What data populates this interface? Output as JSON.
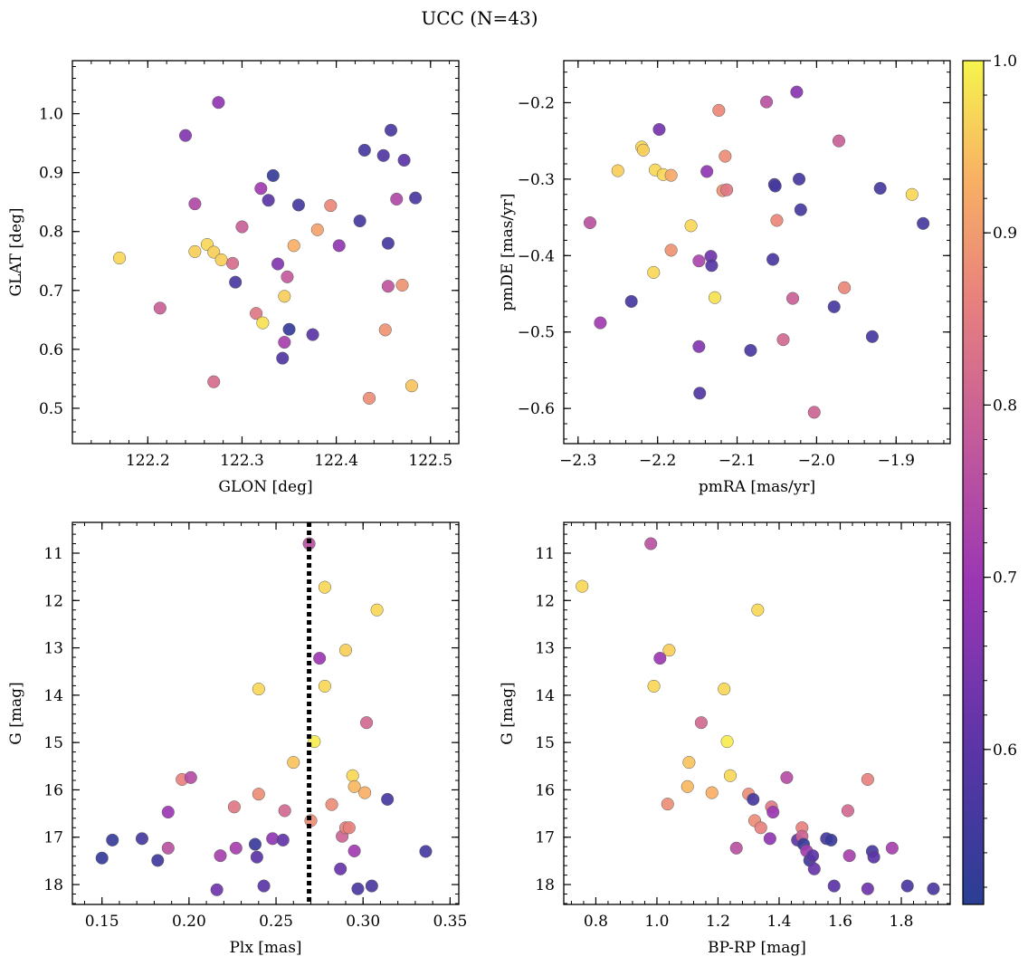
{
  "figure_title": "UCC (N=43)",
  "colorbar": {
    "colormap": "plasma",
    "range": [
      0.51,
      1.0
    ],
    "ticks": [
      0.6,
      0.7,
      0.8,
      0.9,
      1.0
    ],
    "tick_labels": [
      "0.6",
      "0.7",
      "0.8",
      "0.9",
      "1.0"
    ]
  },
  "colors": {
    "marker_edge": "#5a5a5a",
    "median_line": "#000000"
  },
  "chart_data": [
    {
      "type": "scatter",
      "id": "glon-glat",
      "xlabel": "GLON [deg]",
      "ylabel": "GLAT [deg]",
      "xlim": [
        122.12,
        122.53
      ],
      "ylim": [
        0.44,
        1.09
      ],
      "xticks": [
        122.2,
        122.3,
        122.4,
        122.5
      ],
      "xtick_labels": [
        "122.2",
        "122.3",
        "122.4",
        "122.5"
      ],
      "yticks": [
        0.5,
        0.6,
        0.7,
        0.8,
        0.9,
        1.0
      ],
      "ytick_labels": [
        "0.5",
        "0.6",
        "0.7",
        "0.8",
        "0.9",
        "1.0"
      ],
      "points": [
        {
          "x": 122.17,
          "y": 0.755,
          "c": 0.97
        },
        {
          "x": 122.213,
          "y": 0.67,
          "c": 0.79
        },
        {
          "x": 122.24,
          "y": 0.963,
          "c": 0.66
        },
        {
          "x": 122.25,
          "y": 0.847,
          "c": 0.74
        },
        {
          "x": 122.25,
          "y": 0.766,
          "c": 0.96
        },
        {
          "x": 122.263,
          "y": 0.778,
          "c": 0.97
        },
        {
          "x": 122.27,
          "y": 0.765,
          "c": 0.96
        },
        {
          "x": 122.27,
          "y": 0.545,
          "c": 0.82
        },
        {
          "x": 122.275,
          "y": 1.019,
          "c": 0.68
        },
        {
          "x": 122.278,
          "y": 0.752,
          "c": 0.96
        },
        {
          "x": 122.29,
          "y": 0.746,
          "c": 0.82
        },
        {
          "x": 122.293,
          "y": 0.714,
          "c": 0.57
        },
        {
          "x": 122.3,
          "y": 0.808,
          "c": 0.79
        },
        {
          "x": 122.315,
          "y": 0.661,
          "c": 0.84
        },
        {
          "x": 122.32,
          "y": 0.873,
          "c": 0.71
        },
        {
          "x": 122.322,
          "y": 0.645,
          "c": 0.98
        },
        {
          "x": 122.328,
          "y": 0.853,
          "c": 0.6
        },
        {
          "x": 122.333,
          "y": 0.895,
          "c": 0.53
        },
        {
          "x": 122.338,
          "y": 0.745,
          "c": 0.66
        },
        {
          "x": 122.343,
          "y": 0.585,
          "c": 0.58
        },
        {
          "x": 122.345,
          "y": 0.69,
          "c": 0.96
        },
        {
          "x": 122.345,
          "y": 0.612,
          "c": 0.72
        },
        {
          "x": 122.348,
          "y": 0.723,
          "c": 0.78
        },
        {
          "x": 122.35,
          "y": 0.634,
          "c": 0.53
        },
        {
          "x": 122.355,
          "y": 0.776,
          "c": 0.93
        },
        {
          "x": 122.36,
          "y": 0.845,
          "c": 0.56
        },
        {
          "x": 122.375,
          "y": 0.625,
          "c": 0.6
        },
        {
          "x": 122.38,
          "y": 0.803,
          "c": 0.91
        },
        {
          "x": 122.394,
          "y": 0.844,
          "c": 0.87
        },
        {
          "x": 122.403,
          "y": 0.776,
          "c": 0.68
        },
        {
          "x": 122.425,
          "y": 0.818,
          "c": 0.56
        },
        {
          "x": 122.43,
          "y": 0.938,
          "c": 0.56
        },
        {
          "x": 122.435,
          "y": 0.517,
          "c": 0.88
        },
        {
          "x": 122.45,
          "y": 0.929,
          "c": 0.58
        },
        {
          "x": 122.452,
          "y": 0.633,
          "c": 0.89
        },
        {
          "x": 122.455,
          "y": 0.707,
          "c": 0.77
        },
        {
          "x": 122.455,
          "y": 0.78,
          "c": 0.56
        },
        {
          "x": 122.458,
          "y": 0.972,
          "c": 0.57
        },
        {
          "x": 122.464,
          "y": 0.855,
          "c": 0.74
        },
        {
          "x": 122.47,
          "y": 0.709,
          "c": 0.89
        },
        {
          "x": 122.472,
          "y": 0.921,
          "c": 0.6
        },
        {
          "x": 122.48,
          "y": 0.538,
          "c": 0.95
        },
        {
          "x": 122.484,
          "y": 0.857,
          "c": 0.57
        }
      ]
    },
    {
      "type": "scatter",
      "id": "pmra-pmde",
      "xlabel": "pmRA [mas/yr]",
      "ylabel": "pmDE [mas/yr]",
      "xlim": [
        -2.318,
        -1.832
      ],
      "ylim": [
        -0.646,
        -0.145
      ],
      "xticks": [
        -2.3,
        -2.2,
        -2.1,
        -2.0,
        -1.9
      ],
      "xtick_labels": [
        "−2.3",
        "−2.2",
        "−2.1",
        "−2.0",
        "−1.9"
      ],
      "yticks": [
        -0.6,
        -0.5,
        -0.4,
        -0.3,
        -0.2
      ],
      "ytick_labels": [
        "−0.6",
        "−0.5",
        "−0.4",
        "−0.3",
        "−0.2"
      ],
      "points": [
        {
          "x": -2.285,
          "y": -0.357,
          "c": 0.76
        },
        {
          "x": -2.272,
          "y": -0.488,
          "c": 0.71
        },
        {
          "x": -2.25,
          "y": -0.289,
          "c": 0.96
        },
        {
          "x": -2.233,
          "y": -0.46,
          "c": 0.56
        },
        {
          "x": -2.22,
          "y": -0.258,
          "c": 0.97
        },
        {
          "x": -2.218,
          "y": -0.262,
          "c": 0.96
        },
        {
          "x": -2.205,
          "y": -0.422,
          "c": 0.97
        },
        {
          "x": -2.203,
          "y": -0.288,
          "c": 0.97
        },
        {
          "x": -2.198,
          "y": -0.235,
          "c": 0.64
        },
        {
          "x": -2.193,
          "y": -0.294,
          "c": 0.97
        },
        {
          "x": -2.183,
          "y": -0.295,
          "c": 0.92
        },
        {
          "x": -2.183,
          "y": -0.393,
          "c": 0.89
        },
        {
          "x": -2.158,
          "y": -0.361,
          "c": 0.97
        },
        {
          "x": -2.148,
          "y": -0.407,
          "c": 0.73
        },
        {
          "x": -2.148,
          "y": -0.519,
          "c": 0.66
        },
        {
          "x": -2.147,
          "y": -0.58,
          "c": 0.58
        },
        {
          "x": -2.138,
          "y": -0.29,
          "c": 0.68
        },
        {
          "x": -2.133,
          "y": -0.401,
          "c": 0.63
        },
        {
          "x": -2.132,
          "y": -0.413,
          "c": 0.59
        },
        {
          "x": -2.128,
          "y": -0.455,
          "c": 0.98
        },
        {
          "x": -2.123,
          "y": -0.21,
          "c": 0.87
        },
        {
          "x": -2.118,
          "y": -0.315,
          "c": 0.89
        },
        {
          "x": -2.115,
          "y": -0.27,
          "c": 0.88
        },
        {
          "x": -2.113,
          "y": -0.314,
          "c": 0.84
        },
        {
          "x": -2.083,
          "y": -0.524,
          "c": 0.57
        },
        {
          "x": -2.063,
          "y": -0.199,
          "c": 0.76
        },
        {
          "x": -2.055,
          "y": -0.405,
          "c": 0.57
        },
        {
          "x": -2.053,
          "y": -0.307,
          "c": 0.57
        },
        {
          "x": -2.052,
          "y": -0.309,
          "c": 0.56
        },
        {
          "x": -2.05,
          "y": -0.354,
          "c": 0.87
        },
        {
          "x": -2.042,
          "y": -0.51,
          "c": 0.81
        },
        {
          "x": -2.03,
          "y": -0.456,
          "c": 0.79
        },
        {
          "x": -2.025,
          "y": -0.186,
          "c": 0.67
        },
        {
          "x": -2.022,
          "y": -0.3,
          "c": 0.56
        },
        {
          "x": -2.02,
          "y": -0.34,
          "c": 0.56
        },
        {
          "x": -2.003,
          "y": -0.605,
          "c": 0.8
        },
        {
          "x": -1.978,
          "y": -0.467,
          "c": 0.56
        },
        {
          "x": -1.972,
          "y": -0.25,
          "c": 0.79
        },
        {
          "x": -1.965,
          "y": -0.442,
          "c": 0.87
        },
        {
          "x": -1.93,
          "y": -0.506,
          "c": 0.56
        },
        {
          "x": -1.92,
          "y": -0.312,
          "c": 0.56
        },
        {
          "x": -1.88,
          "y": -0.32,
          "c": 0.97
        },
        {
          "x": -1.866,
          "y": -0.358,
          "c": 0.56
        }
      ]
    },
    {
      "type": "scatter",
      "id": "plx-g",
      "xlabel": "Plx [mas]",
      "ylabel": "G [mag]",
      "xlim": [
        0.133,
        0.355
      ],
      "ylim": [
        18.42,
        10.35
      ],
      "y_inverted": true,
      "vline": {
        "x": 0.269,
        "style": "dotted"
      },
      "xticks": [
        0.15,
        0.2,
        0.25,
        0.3,
        0.35
      ],
      "xtick_labels": [
        "0.15",
        "0.20",
        "0.25",
        "0.30",
        "0.35"
      ],
      "yticks": [
        11,
        12,
        13,
        14,
        15,
        16,
        17,
        18
      ],
      "ytick_labels": [
        "11",
        "12",
        "13",
        "14",
        "15",
        "16",
        "17",
        "18"
      ],
      "points": [
        {
          "x": 0.15,
          "y": 17.44,
          "c": 0.53
        },
        {
          "x": 0.156,
          "y": 17.06,
          "c": 0.54
        },
        {
          "x": 0.173,
          "y": 17.03,
          "c": 0.56
        },
        {
          "x": 0.182,
          "y": 17.49,
          "c": 0.55
        },
        {
          "x": 0.188,
          "y": 16.47,
          "c": 0.7
        },
        {
          "x": 0.188,
          "y": 17.23,
          "c": 0.76
        },
        {
          "x": 0.196,
          "y": 15.78,
          "c": 0.86
        },
        {
          "x": 0.201,
          "y": 15.74,
          "c": 0.75
        },
        {
          "x": 0.216,
          "y": 18.11,
          "c": 0.63
        },
        {
          "x": 0.218,
          "y": 17.39,
          "c": 0.72
        },
        {
          "x": 0.226,
          "y": 16.36,
          "c": 0.84
        },
        {
          "x": 0.227,
          "y": 17.23,
          "c": 0.72
        },
        {
          "x": 0.238,
          "y": 17.15,
          "c": 0.54
        },
        {
          "x": 0.239,
          "y": 17.42,
          "c": 0.6
        },
        {
          "x": 0.24,
          "y": 16.09,
          "c": 0.88
        },
        {
          "x": 0.24,
          "y": 13.87,
          "c": 0.97
        },
        {
          "x": 0.243,
          "y": 18.03,
          "c": 0.6
        },
        {
          "x": 0.248,
          "y": 17.03,
          "c": 0.68
        },
        {
          "x": 0.254,
          "y": 17.06,
          "c": 0.61
        },
        {
          "x": 0.255,
          "y": 16.44,
          "c": 0.81
        },
        {
          "x": 0.26,
          "y": 15.42,
          "c": 0.95
        },
        {
          "x": 0.269,
          "y": 10.8,
          "c": 0.76
        },
        {
          "x": 0.27,
          "y": 16.65,
          "c": 0.88
        },
        {
          "x": 0.272,
          "y": 14.98,
          "c": 0.99
        },
        {
          "x": 0.275,
          "y": 13.22,
          "c": 0.7
        },
        {
          "x": 0.278,
          "y": 11.72,
          "c": 0.97
        },
        {
          "x": 0.278,
          "y": 13.81,
          "c": 0.97
        },
        {
          "x": 0.282,
          "y": 16.31,
          "c": 0.88
        },
        {
          "x": 0.287,
          "y": 17.67,
          "c": 0.62
        },
        {
          "x": 0.288,
          "y": 16.98,
          "c": 0.8
        },
        {
          "x": 0.29,
          "y": 16.8,
          "c": 0.86
        },
        {
          "x": 0.29,
          "y": 13.05,
          "c": 0.96
        },
        {
          "x": 0.292,
          "y": 16.8,
          "c": 0.86
        },
        {
          "x": 0.294,
          "y": 15.7,
          "c": 0.97
        },
        {
          "x": 0.295,
          "y": 15.93,
          "c": 0.94
        },
        {
          "x": 0.295,
          "y": 17.29,
          "c": 0.71
        },
        {
          "x": 0.297,
          "y": 18.09,
          "c": 0.57
        },
        {
          "x": 0.301,
          "y": 16.06,
          "c": 0.93
        },
        {
          "x": 0.302,
          "y": 14.58,
          "c": 0.81
        },
        {
          "x": 0.305,
          "y": 18.03,
          "c": 0.57
        },
        {
          "x": 0.308,
          "y": 12.2,
          "c": 0.97
        },
        {
          "x": 0.314,
          "y": 16.2,
          "c": 0.56
        },
        {
          "x": 0.336,
          "y": 17.3,
          "c": 0.56
        }
      ]
    },
    {
      "type": "scatter",
      "id": "bprp-g",
      "xlabel": "BP-RP [mag]",
      "ylabel": "G [mag]",
      "xlim": [
        0.695,
        1.96
      ],
      "ylim": [
        18.42,
        10.35
      ],
      "y_inverted": true,
      "xticks": [
        0.8,
        1.0,
        1.2,
        1.4,
        1.6,
        1.8
      ],
      "xtick_labels": [
        "0.8",
        "1.0",
        "1.2",
        "1.4",
        "1.6",
        "1.8"
      ],
      "yticks": [
        11,
        12,
        13,
        14,
        15,
        16,
        17,
        18
      ],
      "ytick_labels": [
        "11",
        "12",
        "13",
        "14",
        "15",
        "16",
        "17",
        "18"
      ],
      "points": [
        {
          "x": 0.755,
          "y": 11.7,
          "c": 0.97
        },
        {
          "x": 0.98,
          "y": 10.8,
          "c": 0.76
        },
        {
          "x": 0.99,
          "y": 13.81,
          "c": 0.97
        },
        {
          "x": 1.01,
          "y": 13.22,
          "c": 0.7
        },
        {
          "x": 1.035,
          "y": 16.3,
          "c": 0.88
        },
        {
          "x": 1.04,
          "y": 13.05,
          "c": 0.96
        },
        {
          "x": 1.1,
          "y": 15.93,
          "c": 0.94
        },
        {
          "x": 1.105,
          "y": 15.42,
          "c": 0.95
        },
        {
          "x": 1.145,
          "y": 14.58,
          "c": 0.81
        },
        {
          "x": 1.18,
          "y": 16.06,
          "c": 0.93
        },
        {
          "x": 1.22,
          "y": 13.87,
          "c": 0.97
        },
        {
          "x": 1.23,
          "y": 14.98,
          "c": 0.99
        },
        {
          "x": 1.24,
          "y": 15.7,
          "c": 0.97
        },
        {
          "x": 1.26,
          "y": 17.23,
          "c": 0.76
        },
        {
          "x": 1.3,
          "y": 16.09,
          "c": 0.88
        },
        {
          "x": 1.315,
          "y": 16.2,
          "c": 0.56
        },
        {
          "x": 1.32,
          "y": 16.65,
          "c": 0.88
        },
        {
          "x": 1.33,
          "y": 12.2,
          "c": 0.97
        },
        {
          "x": 1.34,
          "y": 16.8,
          "c": 0.86
        },
        {
          "x": 1.37,
          "y": 17.03,
          "c": 0.68
        },
        {
          "x": 1.375,
          "y": 16.36,
          "c": 0.84
        },
        {
          "x": 1.38,
          "y": 16.47,
          "c": 0.7
        },
        {
          "x": 1.425,
          "y": 15.74,
          "c": 0.75
        },
        {
          "x": 1.46,
          "y": 17.06,
          "c": 0.61
        },
        {
          "x": 1.475,
          "y": 16.8,
          "c": 0.86
        },
        {
          "x": 1.475,
          "y": 16.98,
          "c": 0.8
        },
        {
          "x": 1.48,
          "y": 17.15,
          "c": 0.54
        },
        {
          "x": 1.49,
          "y": 17.29,
          "c": 0.71
        },
        {
          "x": 1.5,
          "y": 17.49,
          "c": 0.55
        },
        {
          "x": 1.51,
          "y": 17.39,
          "c": 0.6
        },
        {
          "x": 1.515,
          "y": 17.67,
          "c": 0.62
        },
        {
          "x": 1.555,
          "y": 17.03,
          "c": 0.56
        },
        {
          "x": 1.57,
          "y": 17.06,
          "c": 0.54
        },
        {
          "x": 1.58,
          "y": 18.03,
          "c": 0.6
        },
        {
          "x": 1.625,
          "y": 16.44,
          "c": 0.81
        },
        {
          "x": 1.63,
          "y": 17.39,
          "c": 0.72
        },
        {
          "x": 1.69,
          "y": 15.78,
          "c": 0.86
        },
        {
          "x": 1.69,
          "y": 18.09,
          "c": 0.63
        },
        {
          "x": 1.705,
          "y": 17.3,
          "c": 0.56
        },
        {
          "x": 1.71,
          "y": 17.42,
          "c": 0.6
        },
        {
          "x": 1.77,
          "y": 17.23,
          "c": 0.72
        },
        {
          "x": 1.82,
          "y": 18.03,
          "c": 0.57
        },
        {
          "x": 1.905,
          "y": 18.09,
          "c": 0.57
        }
      ]
    }
  ]
}
